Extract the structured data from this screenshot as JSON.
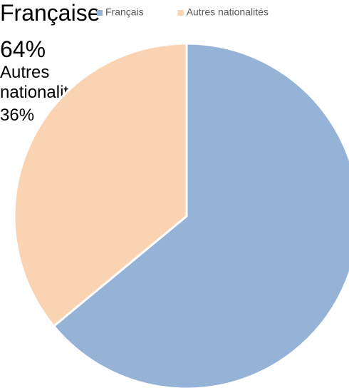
{
  "chart_data": {
    "type": "pie",
    "categories": [
      "Français",
      "Autres nationalités"
    ],
    "labels": [
      "Française",
      "Autres nationalités"
    ],
    "values": [
      64,
      36
    ],
    "value_labels": [
      "64%",
      "36%"
    ],
    "colors": [
      "#95b3d7",
      "#fad3b3"
    ],
    "legend": "top"
  }
}
